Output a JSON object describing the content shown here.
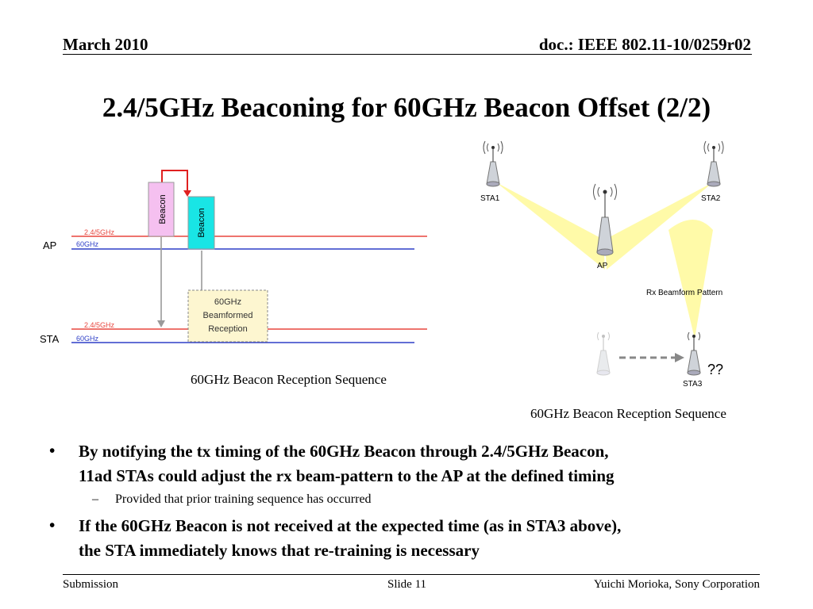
{
  "header": {
    "date": "March 2010",
    "doc": "doc.: IEEE 802.11-10/0259r02"
  },
  "title": "2.4/5GHz Beaconing for 60GHz Beacon Offset (2/2)",
  "diagram_left": {
    "ap_label": "AP",
    "sta_label": "STA",
    "band_24": "2.4/5GHz",
    "band_60": "60GHz",
    "beacon_24": "Beacon",
    "beacon_60": "Beacon",
    "reception_box": [
      "60GHz",
      "Beamformed",
      "Reception"
    ],
    "caption": "60GHz Beacon Reception Sequence"
  },
  "diagram_right": {
    "sta1": "STA1",
    "sta2": "STA2",
    "ap": "AP",
    "sta3": "STA3",
    "rx_pattern": "Rx Beamform Pattern",
    "unknown": "??",
    "caption": "60GHz Beacon Reception Sequence"
  },
  "bullets": [
    {
      "marker": "•",
      "text_line1": "By notifying the tx timing of the 60GHz Beacon through 2.4/5GHz Beacon,",
      "text_line2": "11ad STAs could adjust the rx beam-pattern to the AP at the defined timing"
    },
    {
      "marker": "–",
      "text": "Provided that prior  training sequence has occurred"
    },
    {
      "marker": "•",
      "text_line1": "If the 60GHz Beacon is not received at the expected time (as in STA3 above),",
      "text_line2": "the STA immediately knows that re-training is necessary"
    }
  ],
  "footer": {
    "left": "Submission",
    "center": "Slide 11",
    "right": "Yuichi Morioka, Sony Corporation"
  },
  "colors": {
    "band_24": "#e8473f",
    "band_60": "#2e3fc7",
    "beacon_24": "#f5c0f0",
    "beacon_60": "#19e5e5",
    "beam": "#fffaa8"
  }
}
